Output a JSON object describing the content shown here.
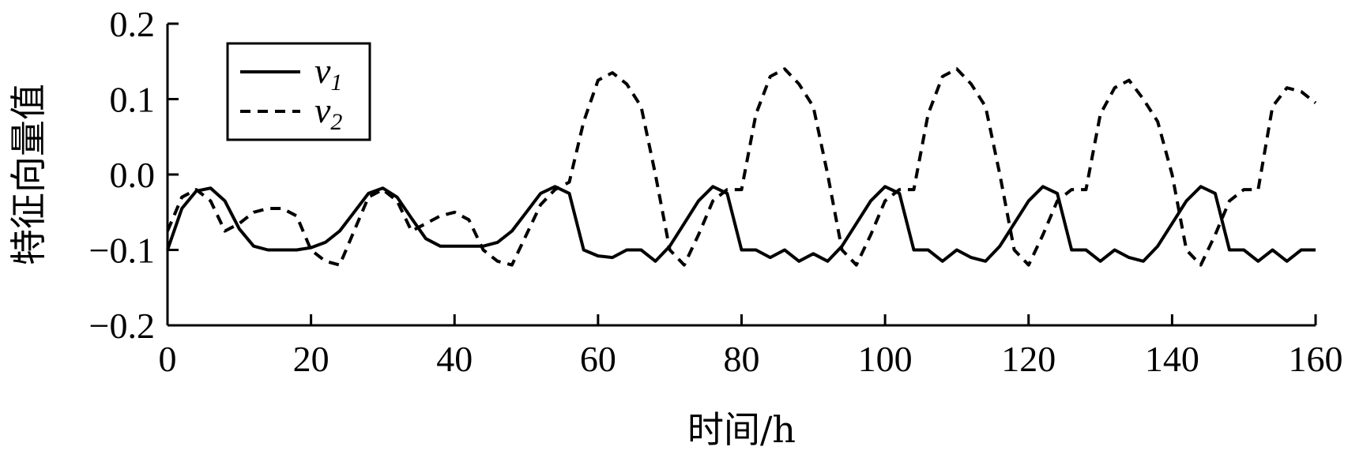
{
  "chart_data": {
    "type": "line",
    "title": "",
    "xlabel": "时间/h",
    "ylabel": "特征向量值",
    "xlim": [
      0,
      160
    ],
    "ylim": [
      -0.2,
      0.2
    ],
    "xticks": [
      0,
      20,
      40,
      60,
      80,
      100,
      120,
      140,
      160
    ],
    "xtick_labels": [
      "0",
      "20",
      "40",
      "60",
      "80",
      "100",
      "120",
      "140",
      "160"
    ],
    "yticks": [
      -0.2,
      -0.1,
      0.0,
      0.1,
      0.2
    ],
    "ytick_labels": [
      "−0.2",
      "−0.1",
      "0.0",
      "0.1",
      "0.2"
    ],
    "grid": false,
    "legend_position": "top-left",
    "series": [
      {
        "name": "v1",
        "name_base": "v",
        "name_sub": "1",
        "line_style": "solid",
        "color": "#000000",
        "x": [
          0,
          2,
          4,
          6,
          8,
          10,
          12,
          14,
          16,
          18,
          20,
          22,
          24,
          26,
          28,
          30,
          32,
          34,
          36,
          38,
          40,
          42,
          44,
          46,
          48,
          50,
          52,
          54,
          56,
          58,
          60,
          62,
          64,
          66,
          68,
          70,
          72,
          74,
          76,
          78,
          80,
          82,
          84,
          86,
          88,
          90,
          92,
          94,
          96,
          98,
          100,
          102,
          104,
          106,
          108,
          110,
          112,
          114,
          116,
          118,
          120,
          122,
          124,
          126,
          128,
          130,
          132,
          134,
          136,
          138,
          140,
          142,
          144,
          146,
          148,
          150,
          152,
          154,
          156,
          158,
          160
        ],
        "y": [
          -0.1,
          -0.045,
          -0.022,
          -0.018,
          -0.035,
          -0.072,
          -0.095,
          -0.1,
          -0.1,
          -0.1,
          -0.097,
          -0.09,
          -0.075,
          -0.05,
          -0.025,
          -0.018,
          -0.03,
          -0.058,
          -0.085,
          -0.095,
          -0.095,
          -0.095,
          -0.095,
          -0.09,
          -0.075,
          -0.05,
          -0.025,
          -0.016,
          -0.025,
          -0.1,
          -0.108,
          -0.11,
          -0.1,
          -0.1,
          -0.115,
          -0.095,
          -0.065,
          -0.035,
          -0.016,
          -0.025,
          -0.1,
          -0.1,
          -0.11,
          -0.1,
          -0.115,
          -0.105,
          -0.115,
          -0.095,
          -0.065,
          -0.035,
          -0.016,
          -0.025,
          -0.1,
          -0.1,
          -0.115,
          -0.1,
          -0.11,
          -0.115,
          -0.095,
          -0.065,
          -0.035,
          -0.016,
          -0.025,
          -0.1,
          -0.1,
          -0.115,
          -0.1,
          -0.11,
          -0.115,
          -0.095,
          -0.065,
          -0.035,
          -0.016,
          -0.025,
          -0.1,
          -0.1,
          -0.115,
          -0.1,
          -0.115,
          -0.1,
          -0.1
        ]
      },
      {
        "name": "v2",
        "name_base": "v",
        "name_sub": "2",
        "line_style": "dashed",
        "color": "#000000",
        "x": [
          0,
          2,
          4,
          6,
          8,
          10,
          12,
          14,
          16,
          18,
          20,
          22,
          24,
          26,
          28,
          30,
          32,
          34,
          36,
          38,
          40,
          42,
          44,
          46,
          48,
          50,
          52,
          54,
          56,
          58,
          60,
          62,
          64,
          66,
          68,
          70,
          72,
          74,
          76,
          78,
          80,
          82,
          84,
          86,
          88,
          90,
          92,
          94,
          96,
          98,
          100,
          102,
          104,
          106,
          108,
          110,
          112,
          114,
          116,
          118,
          120,
          122,
          124,
          126,
          128,
          130,
          132,
          134,
          136,
          138,
          140,
          142,
          144,
          146,
          148,
          150,
          152,
          154,
          156,
          158,
          160
        ],
        "y": [
          -0.075,
          -0.03,
          -0.02,
          -0.035,
          -0.075,
          -0.065,
          -0.05,
          -0.045,
          -0.045,
          -0.055,
          -0.1,
          -0.115,
          -0.12,
          -0.075,
          -0.03,
          -0.02,
          -0.035,
          -0.075,
          -0.065,
          -0.055,
          -0.05,
          -0.06,
          -0.1,
          -0.115,
          -0.12,
          -0.08,
          -0.04,
          -0.02,
          -0.01,
          0.07,
          0.125,
          0.135,
          0.12,
          0.09,
          0.0,
          -0.1,
          -0.12,
          -0.08,
          -0.035,
          -0.02,
          -0.02,
          0.08,
          0.13,
          0.14,
          0.12,
          0.09,
          0.0,
          -0.1,
          -0.12,
          -0.08,
          -0.035,
          -0.02,
          -0.02,
          0.08,
          0.13,
          0.14,
          0.12,
          0.09,
          0.0,
          -0.1,
          -0.12,
          -0.08,
          -0.035,
          -0.02,
          -0.02,
          0.08,
          0.115,
          0.125,
          0.1,
          0.07,
          0.0,
          -0.1,
          -0.12,
          -0.08,
          -0.035,
          -0.02,
          -0.02,
          0.09,
          0.115,
          0.11,
          0.095
        ]
      }
    ]
  }
}
